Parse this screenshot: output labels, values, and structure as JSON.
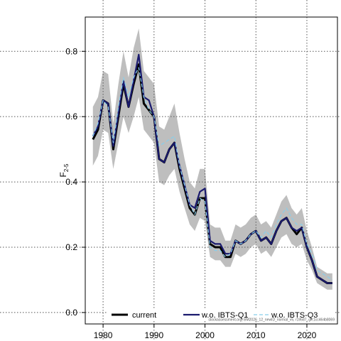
{
  "chart_data": {
    "type": "line",
    "title": "",
    "xlabel": "",
    "ylabel": "F",
    "ylabel_sub": "2-5",
    "xlim": [
      1976.5,
      2026
    ],
    "ylim": [
      -0.035,
      0.905
    ],
    "xticks": [
      1980,
      1990,
      2000,
      2010,
      2020
    ],
    "xtick_labels": [
      "1980",
      "1990",
      "2000",
      "2010",
      "2020"
    ],
    "yticks": [
      0.0,
      0.2,
      0.4,
      0.6,
      0.8
    ],
    "ytick_labels": [
      "0.0",
      "0.2",
      "0.4",
      "0.6",
      "0.8"
    ],
    "grid": true,
    "legend_position": "bottom",
    "years": [
      1978,
      1979,
      1980,
      1981,
      1982,
      1983,
      1984,
      1985,
      1986,
      1987,
      1988,
      1989,
      1990,
      1991,
      1992,
      1993,
      1994,
      1995,
      1996,
      1997,
      1998,
      1999,
      2000,
      2001,
      2002,
      2003,
      2004,
      2005,
      2006,
      2007,
      2008,
      2009,
      2010,
      2011,
      2012,
      2013,
      2014,
      2015,
      2016,
      2017,
      2018,
      2019,
      2020,
      2021,
      2022,
      2023,
      2024,
      2025
    ],
    "series": [
      {
        "name": "current",
        "color": "#000000",
        "values": [
          0.53,
          0.56,
          0.65,
          0.64,
          0.5,
          0.6,
          0.7,
          0.63,
          0.7,
          0.76,
          0.64,
          0.62,
          0.6,
          0.47,
          0.46,
          0.5,
          0.52,
          0.44,
          0.38,
          0.32,
          0.3,
          0.35,
          0.35,
          0.21,
          0.2,
          0.2,
          0.17,
          0.17,
          0.22,
          0.21,
          0.22,
          0.24,
          0.25,
          0.22,
          0.23,
          0.21,
          0.25,
          0.28,
          0.29,
          0.26,
          0.24,
          0.26,
          0.2,
          0.16,
          0.11,
          0.1,
          0.09,
          0.09
        ]
      },
      {
        "name": "w.o. IBTS-Q1",
        "color": "#1a1a6e",
        "values": [
          0.54,
          0.57,
          0.65,
          0.64,
          0.51,
          0.61,
          0.71,
          0.63,
          0.71,
          0.79,
          0.66,
          0.65,
          0.6,
          0.47,
          0.46,
          0.5,
          0.52,
          0.45,
          0.39,
          0.33,
          0.32,
          0.37,
          0.38,
          0.22,
          0.21,
          0.21,
          0.18,
          0.18,
          0.22,
          0.21,
          0.22,
          0.24,
          0.25,
          0.22,
          0.23,
          0.21,
          0.25,
          0.28,
          0.29,
          0.26,
          0.25,
          0.26,
          0.2,
          0.16,
          0.11,
          0.1,
          0.09,
          0.09
        ]
      },
      {
        "name": "w.o. IBTS-Q3",
        "color": "#87ceeb",
        "values": [
          0.54,
          0.58,
          0.65,
          0.63,
          0.52,
          0.63,
          0.72,
          0.66,
          0.72,
          0.75,
          0.66,
          0.62,
          0.6,
          0.51,
          0.52,
          0.53,
          0.54,
          0.45,
          0.39,
          0.33,
          0.3,
          0.35,
          0.34,
          0.2,
          0.19,
          0.19,
          0.17,
          0.18,
          0.22,
          0.21,
          0.22,
          0.24,
          0.25,
          0.23,
          0.25,
          0.23,
          0.27,
          0.3,
          0.32,
          0.29,
          0.27,
          0.27,
          0.21,
          0.18,
          0.13,
          0.12,
          0.11,
          0.1
        ]
      }
    ],
    "confidence_band": {
      "color": "#bebebe",
      "lower": [
        0.45,
        0.48,
        0.56,
        0.55,
        0.44,
        0.52,
        0.6,
        0.55,
        0.6,
        0.66,
        0.56,
        0.54,
        0.52,
        0.4,
        0.39,
        0.42,
        0.44,
        0.37,
        0.32,
        0.27,
        0.25,
        0.29,
        0.28,
        0.17,
        0.16,
        0.16,
        0.14,
        0.14,
        0.18,
        0.17,
        0.18,
        0.2,
        0.21,
        0.18,
        0.19,
        0.17,
        0.2,
        0.23,
        0.24,
        0.21,
        0.2,
        0.21,
        0.16,
        0.13,
        0.09,
        0.08,
        0.07,
        0.07
      ],
      "upper": [
        0.63,
        0.66,
        0.74,
        0.73,
        0.58,
        0.7,
        0.8,
        0.72,
        0.81,
        0.87,
        0.74,
        0.72,
        0.7,
        0.57,
        0.56,
        0.6,
        0.64,
        0.55,
        0.47,
        0.4,
        0.38,
        0.44,
        0.44,
        0.27,
        0.26,
        0.26,
        0.22,
        0.22,
        0.27,
        0.26,
        0.27,
        0.29,
        0.3,
        0.27,
        0.28,
        0.26,
        0.3,
        0.34,
        0.36,
        0.32,
        0.3,
        0.32,
        0.25,
        0.2,
        0.14,
        0.13,
        0.12,
        0.12
      ]
    },
    "footnote": "stockassessment.org, BM2026_12_newID_normal_v5, r19587, git:1cc464b8069"
  }
}
